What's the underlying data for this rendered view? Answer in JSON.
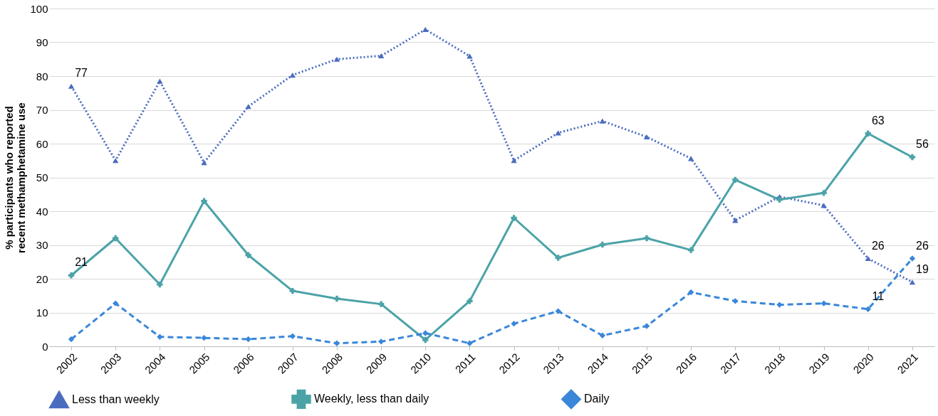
{
  "chart_data": {
    "type": "line",
    "ylabel": "% participants who reported recent methamphetamine use",
    "categories": [
      "2002",
      "2003",
      "2004",
      "2005",
      "2006",
      "2007",
      "2008",
      "2009",
      "2010",
      "2011",
      "2012",
      "2013",
      "2014",
      "2015",
      "2016",
      "2017",
      "2018",
      "2019",
      "2020",
      "2021"
    ],
    "ylim": [
      0,
      100
    ],
    "yticks": [
      0,
      10,
      20,
      30,
      40,
      50,
      60,
      70,
      80,
      90,
      100
    ],
    "grid": "y",
    "legend": "bottom",
    "series": [
      {
        "name": "Less than weekly",
        "color": "#4a6cbf",
        "marker": "triangle",
        "line_style": "dotted",
        "values": [
          77,
          55,
          78.5,
          54.4,
          71,
          80.3,
          85,
          86,
          93.8,
          85.9,
          55,
          63.2,
          66.7,
          62,
          55.6,
          37.3,
          44.3,
          41.7,
          26,
          19
        ],
        "value_labels": [
          "77",
          null,
          null,
          null,
          null,
          null,
          null,
          null,
          null,
          null,
          null,
          null,
          null,
          null,
          null,
          null,
          null,
          null,
          "26",
          "19"
        ]
      },
      {
        "name": "Weekly, less than daily",
        "color": "#4ba3a8",
        "marker": "cross",
        "line_style": "solid",
        "values": [
          21,
          32,
          18.3,
          43,
          27,
          16.4,
          14.1,
          12.5,
          1.9,
          13.4,
          38,
          26.2,
          30.1,
          32,
          28.5,
          49.3,
          43.4,
          45.4,
          63,
          56
        ],
        "value_labels": [
          "21",
          null,
          null,
          null,
          null,
          null,
          null,
          null,
          null,
          null,
          null,
          null,
          null,
          null,
          null,
          null,
          null,
          null,
          "63",
          "56"
        ]
      },
      {
        "name": "Daily",
        "color": "#3a87d9",
        "marker": "diamond",
        "line_style": "dashed",
        "values": [
          2.1,
          12.7,
          2.8,
          2.5,
          2.1,
          3,
          0.9,
          1.4,
          3.9,
          0.9,
          6.7,
          10.4,
          3.2,
          6,
          16,
          13.4,
          12.3,
          12.7,
          11,
          26
        ],
        "value_labels": [
          null,
          null,
          null,
          null,
          null,
          null,
          null,
          null,
          null,
          null,
          null,
          null,
          null,
          null,
          null,
          null,
          null,
          null,
          "11",
          "26"
        ]
      }
    ]
  }
}
